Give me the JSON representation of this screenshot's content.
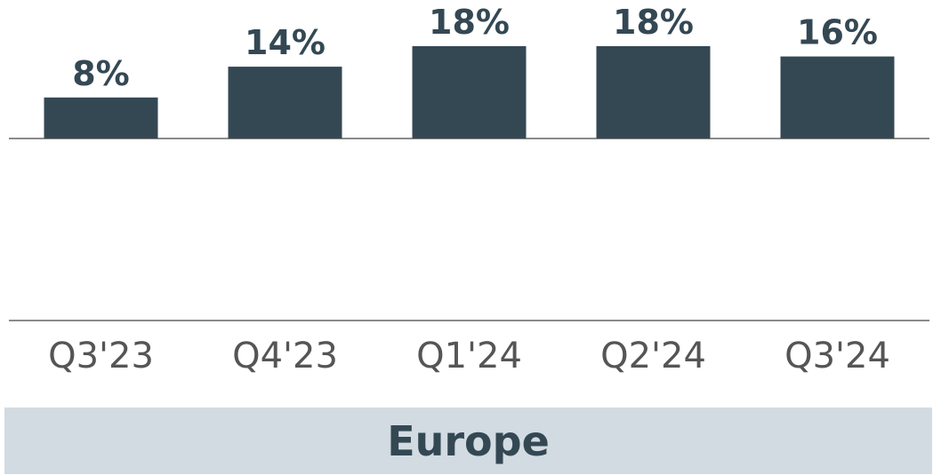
{
  "chart_data": {
    "type": "bar",
    "categories": [
      "Q3'23",
      "Q4'23",
      "Q1'24",
      "Q2'24",
      "Q3'24"
    ],
    "values": [
      8,
      14,
      18,
      18,
      16
    ],
    "data_labels": [
      "8%",
      "14%",
      "18%",
      "18%",
      "16%"
    ],
    "title": "",
    "xlabel": "",
    "ylabel": "",
    "ylim": [
      0,
      18
    ],
    "value_format": "percent",
    "grid": false,
    "bar_color": "#344854"
  },
  "footer": {
    "label": "Europe",
    "band_color": "#d3dbe2"
  }
}
